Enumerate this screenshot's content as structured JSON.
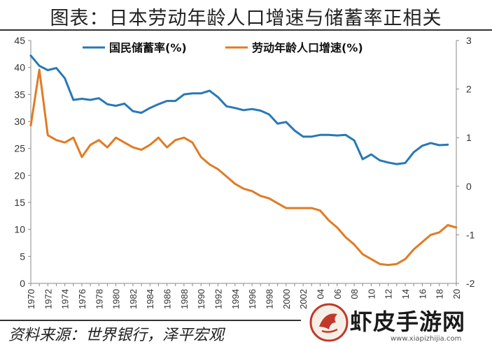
{
  "title": "图表：日本劳动年龄人口增速与储蓄率正相关",
  "source": "资料来源：世界银行，泽平宏观",
  "watermark": {
    "text": "虾皮手游网",
    "url": "www.xiapizhijia.com"
  },
  "colors": {
    "savings": "#2878b5",
    "workforce": "#e07b24"
  },
  "chart_data": {
    "type": "line",
    "x": [
      1970,
      1971,
      1972,
      1973,
      1974,
      1975,
      1976,
      1977,
      1978,
      1979,
      1980,
      1981,
      1982,
      1983,
      1984,
      1985,
      1986,
      1987,
      1988,
      1989,
      1990,
      1991,
      1992,
      1993,
      1994,
      1995,
      1996,
      1997,
      1998,
      1999,
      2000,
      2001,
      2002,
      2003,
      2004,
      2005,
      2006,
      2007,
      2008,
      2009,
      2010,
      2011,
      2012,
      2013,
      2014,
      2015,
      2016,
      2017,
      2018,
      2019,
      2020
    ],
    "x_tick_labels": [
      "1970",
      "1972",
      "1974",
      "1976",
      "1978",
      "1980",
      "1982",
      "1984",
      "1986",
      "1988",
      "1990",
      "1992",
      "1994",
      "1996",
      "1998",
      "2000",
      "2002",
      "04",
      "06",
      "08",
      "10",
      "12",
      "14",
      "16",
      "18",
      "20"
    ],
    "series": [
      {
        "name": "国民储蓄率(%)",
        "axis": "left",
        "values": [
          42.2,
          40.3,
          39.5,
          39.9,
          38.0,
          34.0,
          34.2,
          34.0,
          34.3,
          33.2,
          32.9,
          33.3,
          31.9,
          31.6,
          32.5,
          33.2,
          33.8,
          33.8,
          35.0,
          35.2,
          35.2,
          35.7,
          34.5,
          32.8,
          32.5,
          32.1,
          32.3,
          32.0,
          31.3,
          29.6,
          29.9,
          28.3,
          27.2,
          27.2,
          27.5,
          27.5,
          27.4,
          27.5,
          26.5,
          23.0,
          23.9,
          22.8,
          22.4,
          22.1,
          22.3,
          24.3,
          25.5,
          26.0,
          25.6,
          25.7,
          null
        ]
      },
      {
        "name": "劳动年龄人口增速(%)",
        "axis": "right",
        "values": [
          1.25,
          2.4,
          1.05,
          0.95,
          0.9,
          1.0,
          0.6,
          0.85,
          0.95,
          0.8,
          1.0,
          0.9,
          0.8,
          0.75,
          0.85,
          1.0,
          0.8,
          0.95,
          1.0,
          0.9,
          0.6,
          0.45,
          0.35,
          0.2,
          0.05,
          -0.05,
          -0.1,
          -0.2,
          -0.25,
          -0.35,
          -0.45,
          -0.45,
          -0.45,
          -0.45,
          -0.5,
          -0.7,
          -0.85,
          -1.05,
          -1.2,
          -1.4,
          -1.5,
          -1.6,
          -1.62,
          -1.6,
          -1.5,
          -1.3,
          -1.15,
          -1.0,
          -0.95,
          -0.8,
          -0.85
        ]
      }
    ],
    "left_axis": {
      "min": 0,
      "max": 45,
      "ticks": [
        0,
        5,
        10,
        15,
        20,
        25,
        30,
        35,
        40,
        45
      ]
    },
    "right_axis": {
      "min": -2,
      "max": 3,
      "ticks": [
        -2,
        -1,
        0,
        1,
        2,
        3
      ]
    },
    "legend_position": "top-center",
    "grid": false
  }
}
